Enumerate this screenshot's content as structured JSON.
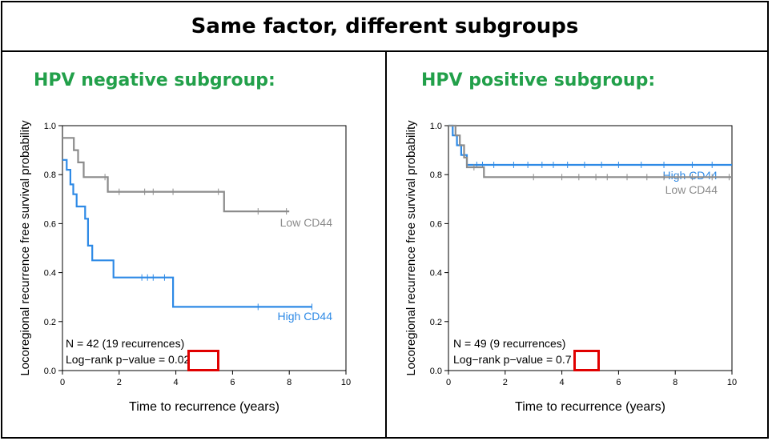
{
  "title": "Same factor, different subgroups",
  "panels": [
    {
      "heading": "HPV negative subgroup:",
      "n_text": "N = 42 (19 recurrences)",
      "p_label": "Log−rank p−value = ",
      "p_value": "0.02"
    },
    {
      "heading": "HPV positive subgroup:",
      "n_text": "N = 49 (9 recurrences)",
      "p_label": "Log−rank p−value = ",
      "p_value": "0.7"
    }
  ],
  "colors": {
    "high": "#2e8ae6",
    "low": "#8c8c8c",
    "heading": "#22a04a",
    "highlight": "#e00000"
  },
  "chart_data": [
    {
      "type": "line",
      "xlabel": "Time to recurrence (years)",
      "ylabel": "Locoregional recurrence free survival probability",
      "xlim": [
        0,
        10
      ],
      "ylim": [
        0,
        1
      ],
      "xticks": [
        0,
        2,
        4,
        6,
        8,
        10
      ],
      "yticks": [
        0.0,
        0.2,
        0.4,
        0.6,
        0.8,
        1.0
      ],
      "series": [
        {
          "name": "Low CD44",
          "color": "#8c8c8c",
          "steps": [
            [
              0,
              0.95
            ],
            [
              0.4,
              0.95
            ],
            [
              0.4,
              0.9
            ],
            [
              0.55,
              0.9
            ],
            [
              0.55,
              0.85
            ],
            [
              0.75,
              0.85
            ],
            [
              0.75,
              0.79
            ],
            [
              1.6,
              0.79
            ],
            [
              1.6,
              0.73
            ],
            [
              5.7,
              0.73
            ],
            [
              5.7,
              0.65
            ],
            [
              8.0,
              0.65
            ]
          ],
          "censors": [
            [
              1.5,
              0.79
            ],
            [
              2.0,
              0.73
            ],
            [
              2.9,
              0.73
            ],
            [
              3.2,
              0.73
            ],
            [
              3.9,
              0.73
            ],
            [
              5.5,
              0.73
            ],
            [
              6.9,
              0.65
            ],
            [
              7.9,
              0.65
            ]
          ]
        },
        {
          "name": "High CD44",
          "color": "#2e8ae6",
          "steps": [
            [
              0,
              0.86
            ],
            [
              0.15,
              0.86
            ],
            [
              0.15,
              0.82
            ],
            [
              0.28,
              0.82
            ],
            [
              0.28,
              0.76
            ],
            [
              0.38,
              0.76
            ],
            [
              0.38,
              0.72
            ],
            [
              0.5,
              0.72
            ],
            [
              0.5,
              0.67
            ],
            [
              0.8,
              0.67
            ],
            [
              0.8,
              0.62
            ],
            [
              0.9,
              0.62
            ],
            [
              0.9,
              0.51
            ],
            [
              1.05,
              0.51
            ],
            [
              1.05,
              0.45
            ],
            [
              1.8,
              0.45
            ],
            [
              1.8,
              0.38
            ],
            [
              3.9,
              0.38
            ],
            [
              3.9,
              0.26
            ],
            [
              8.8,
              0.26
            ]
          ],
          "censors": [
            [
              0.9,
              0.53
            ],
            [
              2.8,
              0.38
            ],
            [
              3.0,
              0.38
            ],
            [
              3.2,
              0.38
            ],
            [
              3.6,
              0.38
            ],
            [
              6.9,
              0.26
            ],
            [
              8.8,
              0.26
            ]
          ]
        }
      ]
    },
    {
      "type": "line",
      "xlabel": "Time to recurrence (years)",
      "ylabel": "Locoregional recurrence free survival probability",
      "xlim": [
        0,
        10
      ],
      "ylim": [
        0,
        1
      ],
      "xticks": [
        0,
        2,
        4,
        6,
        8,
        10
      ],
      "yticks": [
        0.0,
        0.2,
        0.4,
        0.6,
        0.8,
        1.0
      ],
      "series": [
        {
          "name": "High CD44",
          "color": "#2e8ae6",
          "steps": [
            [
              0,
              1.0
            ],
            [
              0.15,
              1.0
            ],
            [
              0.15,
              0.96
            ],
            [
              0.3,
              0.96
            ],
            [
              0.3,
              0.92
            ],
            [
              0.45,
              0.92
            ],
            [
              0.45,
              0.88
            ],
            [
              0.65,
              0.88
            ],
            [
              0.65,
              0.84
            ],
            [
              10,
              0.84
            ]
          ],
          "censors": [
            [
              1.0,
              0.84
            ],
            [
              1.2,
              0.84
            ],
            [
              1.6,
              0.84
            ],
            [
              2.3,
              0.84
            ],
            [
              2.8,
              0.84
            ],
            [
              3.3,
              0.84
            ],
            [
              3.7,
              0.84
            ],
            [
              4.2,
              0.84
            ],
            [
              4.8,
              0.84
            ],
            [
              5.4,
              0.84
            ],
            [
              6.0,
              0.84
            ],
            [
              6.8,
              0.84
            ],
            [
              7.6,
              0.84
            ],
            [
              8.6,
              0.84
            ],
            [
              9.3,
              0.84
            ]
          ]
        },
        {
          "name": "Low CD44",
          "color": "#8c8c8c",
          "steps": [
            [
              0,
              1.0
            ],
            [
              0.25,
              1.0
            ],
            [
              0.25,
              0.96
            ],
            [
              0.4,
              0.96
            ],
            [
              0.4,
              0.92
            ],
            [
              0.55,
              0.92
            ],
            [
              0.55,
              0.87
            ],
            [
              0.65,
              0.87
            ],
            [
              0.65,
              0.83
            ],
            [
              1.25,
              0.83
            ],
            [
              1.25,
              0.79
            ],
            [
              10,
              0.79
            ]
          ],
          "censors": [
            [
              0.9,
              0.83
            ],
            [
              3.0,
              0.79
            ],
            [
              4.0,
              0.79
            ],
            [
              4.6,
              0.79
            ],
            [
              5.2,
              0.79
            ],
            [
              5.6,
              0.79
            ],
            [
              6.3,
              0.79
            ],
            [
              7.0,
              0.79
            ],
            [
              7.6,
              0.79
            ],
            [
              8.1,
              0.79
            ],
            [
              8.6,
              0.79
            ],
            [
              9.3,
              0.79
            ],
            [
              9.9,
              0.79
            ]
          ]
        }
      ]
    }
  ]
}
